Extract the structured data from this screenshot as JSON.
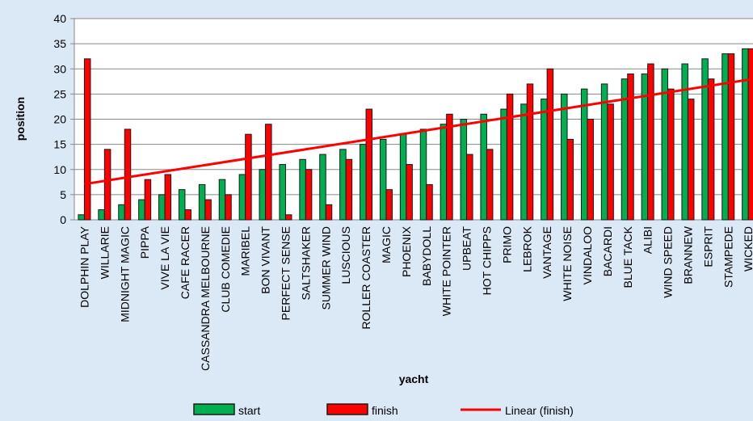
{
  "chart_data": {
    "type": "bar",
    "categories": [
      "DOLPHIN PLAY",
      "WILLARIE",
      "MIDNIGHT MAGIC",
      "PIPPA",
      "VIVE LA VIE",
      "CAFE RACER",
      "CASSANDRA MELBOURNE",
      "CLUB COMEDIE",
      "MARIBEL",
      "BON VIVANT",
      "PERFECT SENSE",
      "SALTSHAKER",
      "SUMMER WIND",
      "LUSCIOUS",
      "ROLLER COASTER",
      "MAGIC",
      "PHOENIX",
      "BABYDOLL",
      "WHITE POINTER",
      "UPBEAT",
      "HOT CHIPPS",
      "PRIMO",
      "LEBROK",
      "VANTAGE",
      "WHITE NOISE",
      "VINDALOO",
      "BACARDI",
      "BLUE TACK",
      "ALIBI",
      "WIND SPEED",
      "BRANNEW",
      "ESPRIT",
      "STAMPEDE",
      "WICKED"
    ],
    "series": [
      {
        "name": "start",
        "color": "#00b050",
        "values": [
          1,
          2,
          3,
          4,
          5,
          6,
          7,
          8,
          9,
          10,
          11,
          12,
          13,
          14,
          15,
          16,
          17,
          18,
          19,
          20,
          21,
          22,
          23,
          24,
          25,
          26,
          27,
          28,
          29,
          30,
          31,
          32,
          33,
          34
        ]
      },
      {
        "name": "finish",
        "color": "#ff0000",
        "values": [
          32,
          14,
          18,
          8,
          9,
          2,
          4,
          5,
          17,
          19,
          1,
          10,
          3,
          12,
          22,
          6,
          11,
          7,
          21,
          13,
          14,
          25,
          27,
          30,
          16,
          20,
          23,
          29,
          31,
          26,
          24,
          28,
          33,
          34
        ]
      }
    ],
    "trendline": {
      "name": "Linear (finish)",
      "color": "#ff0000"
    },
    "x_label": "yacht",
    "y_label": "position",
    "ylim": [
      0,
      40
    ],
    "yticks": [
      0,
      5,
      10,
      15,
      20,
      25,
      30,
      35,
      40
    ],
    "grid": true,
    "legend": "bottom"
  }
}
